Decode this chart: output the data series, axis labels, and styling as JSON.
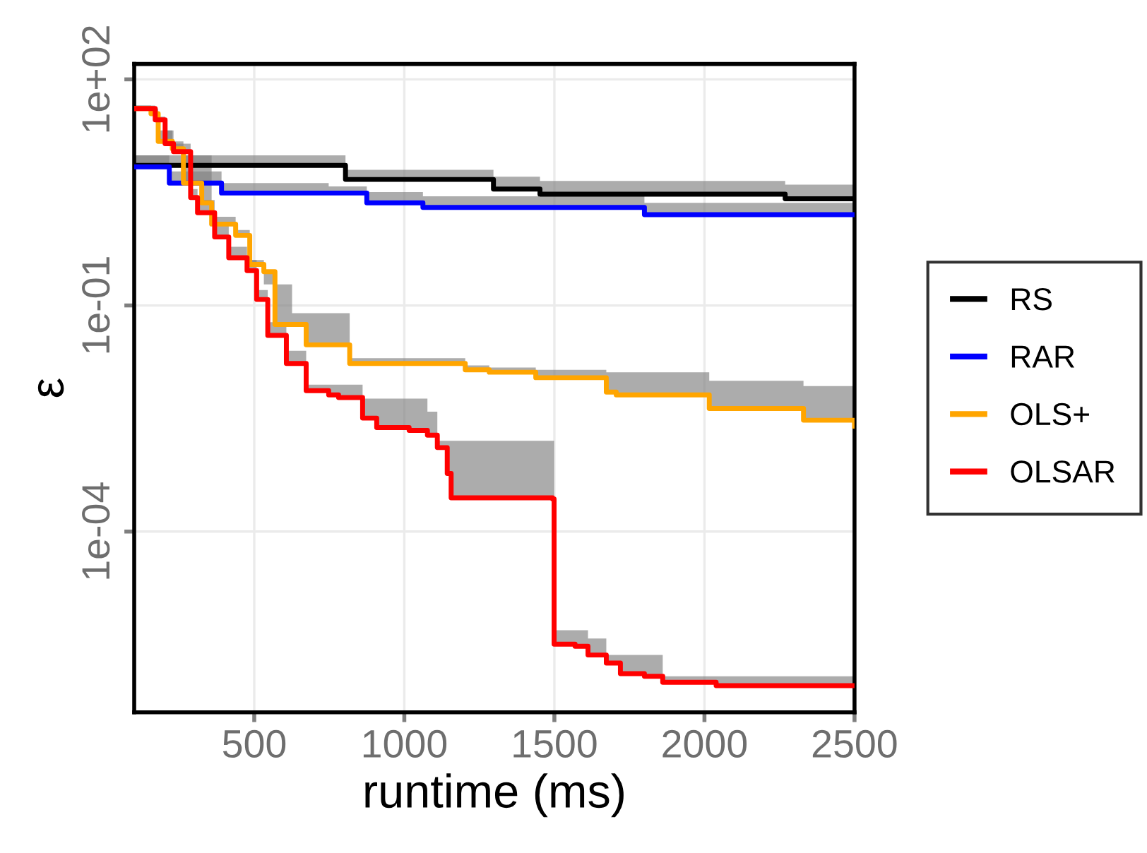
{
  "chart_data": {
    "type": "step",
    "xlabel": "runtime (ms)",
    "ylabel": "ε",
    "log": "y",
    "xlim": [
      100,
      2500
    ],
    "xticks": [
      500,
      1000,
      1500,
      2000,
      2500
    ],
    "ylim": [
      4e-07,
      160
    ],
    "yticks": [
      {
        "value": 100,
        "label": "1e+02"
      },
      {
        "value": 0.1,
        "label": "1e-01"
      },
      {
        "value": 0.0001,
        "label": "1e-04"
      }
    ],
    "grid": true,
    "legend": "right",
    "series": [
      {
        "name": "RS",
        "color": "#000000",
        "x": [
          100,
          804,
          1297,
          1452,
          2269,
          2500
        ],
        "values": [
          7.2,
          4.7,
          3.5,
          3.0,
          2.6,
          2.6
        ],
        "lower": [
          7.2,
          4.7,
          3.5,
          3.0,
          2.6,
          2.6
        ],
        "upper": [
          9.8,
          6.3,
          5.1,
          4.5,
          4.0,
          4.0
        ]
      },
      {
        "name": "RAR",
        "color": "#0000ff",
        "x": [
          100,
          217,
          391,
          748,
          875,
          1062,
          1800,
          2500
        ],
        "values": [
          6.9,
          4.2,
          3.1,
          3.1,
          2.3,
          2.0,
          1.6,
          1.6
        ],
        "lower": [
          6.9,
          4.2,
          3.1,
          3.1,
          2.3,
          2.0,
          1.6,
          1.6
        ],
        "upper": [
          9.8,
          6.0,
          4.2,
          3.8,
          3.2,
          2.8,
          2.3,
          2.1
        ]
      },
      {
        "name": "OLS+",
        "color": "#ffa500",
        "x": [
          100,
          156,
          180,
          227,
          264,
          325,
          358,
          438,
          485,
          532,
          569,
          626,
          673,
          814,
          818,
          983,
          1203,
          1283,
          1438,
          1673,
          1706,
          2016,
          2330,
          2500
        ],
        "values": [
          41,
          35,
          15,
          12,
          4.2,
          2.3,
          1.2,
          0.85,
          0.35,
          0.28,
          0.056,
          0.056,
          0.03,
          0.03,
          0.017,
          0.017,
          0.014,
          0.013,
          0.011,
          0.0071,
          0.0065,
          0.0043,
          0.003,
          0.0025
        ],
        "lower": [
          41,
          35,
          15,
          12,
          4.2,
          2.3,
          1.2,
          0.85,
          0.35,
          0.28,
          0.056,
          0.056,
          0.03,
          0.03,
          0.017,
          0.017,
          0.014,
          0.013,
          0.011,
          0.0071,
          0.0065,
          0.0043,
          0.003,
          0.0025
        ],
        "upper": [
          45,
          41,
          21,
          15,
          9.8,
          9.8,
          1.5,
          1.0,
          0.4,
          0.19,
          0.19,
          0.079,
          0.079,
          0.079,
          0.02,
          0.02,
          0.016,
          0.015,
          0.014,
          0.013,
          0.013,
          0.01,
          0.0085,
          0.0074
        ]
      },
      {
        "name": "OLSAR",
        "color": "#ff0000",
        "x": [
          100,
          123,
          170,
          203,
          231,
          288,
          311,
          368,
          415,
          476,
          508,
          545,
          579,
          607,
          673,
          748,
          781,
          861,
          908,
          1016,
          1077,
          1110,
          1143,
          1156,
          1494,
          1499,
          1569,
          1612,
          1673,
          1720,
          1800,
          1861,
          2025,
          2039,
          2500
        ],
        "values": [
          41,
          41,
          29,
          14,
          11,
          2.7,
          1.7,
          0.81,
          0.43,
          0.29,
          0.12,
          0.04,
          0.04,
          0.017,
          0.0074,
          0.0065,
          0.006,
          0.0032,
          0.0024,
          0.0022,
          0.0019,
          0.0013,
          0.00059,
          0.00028,
          0.00027,
          3.2e-06,
          3e-06,
          2.3e-06,
          1.8e-06,
          1.3e-06,
          1.2e-06,
          1e-06,
          1e-06,
          9e-07,
          9e-07
        ],
        "lower": [
          41,
          41,
          29,
          14,
          11,
          2.7,
          1.7,
          0.81,
          0.43,
          0.29,
          0.12,
          0.04,
          0.04,
          0.017,
          0.0074,
          0.0065,
          0.006,
          0.0032,
          0.0024,
          0.0022,
          0.0019,
          0.0013,
          0.00059,
          0.00028,
          0.00027,
          3.2e-06,
          3e-06,
          2.3e-06,
          1.8e-06,
          1.3e-06,
          1.2e-06,
          1e-06,
          1e-06,
          9e-07,
          9e-07
        ],
        "upper": [
          45,
          45,
          32,
          21,
          14,
          3.5,
          2.5,
          1.2,
          0.6,
          0.4,
          0.16,
          0.06,
          0.06,
          0.025,
          0.0089,
          0.0089,
          0.0089,
          0.0058,
          0.0058,
          0.0058,
          0.0039,
          0.0016,
          0.0016,
          0.0016,
          0.0016,
          4.9e-06,
          4.9e-06,
          3.8e-06,
          2.3e-06,
          2.3e-06,
          2.3e-06,
          1.2e-06,
          1.2e-06,
          1.2e-06,
          1.2e-06
        ]
      }
    ]
  }
}
